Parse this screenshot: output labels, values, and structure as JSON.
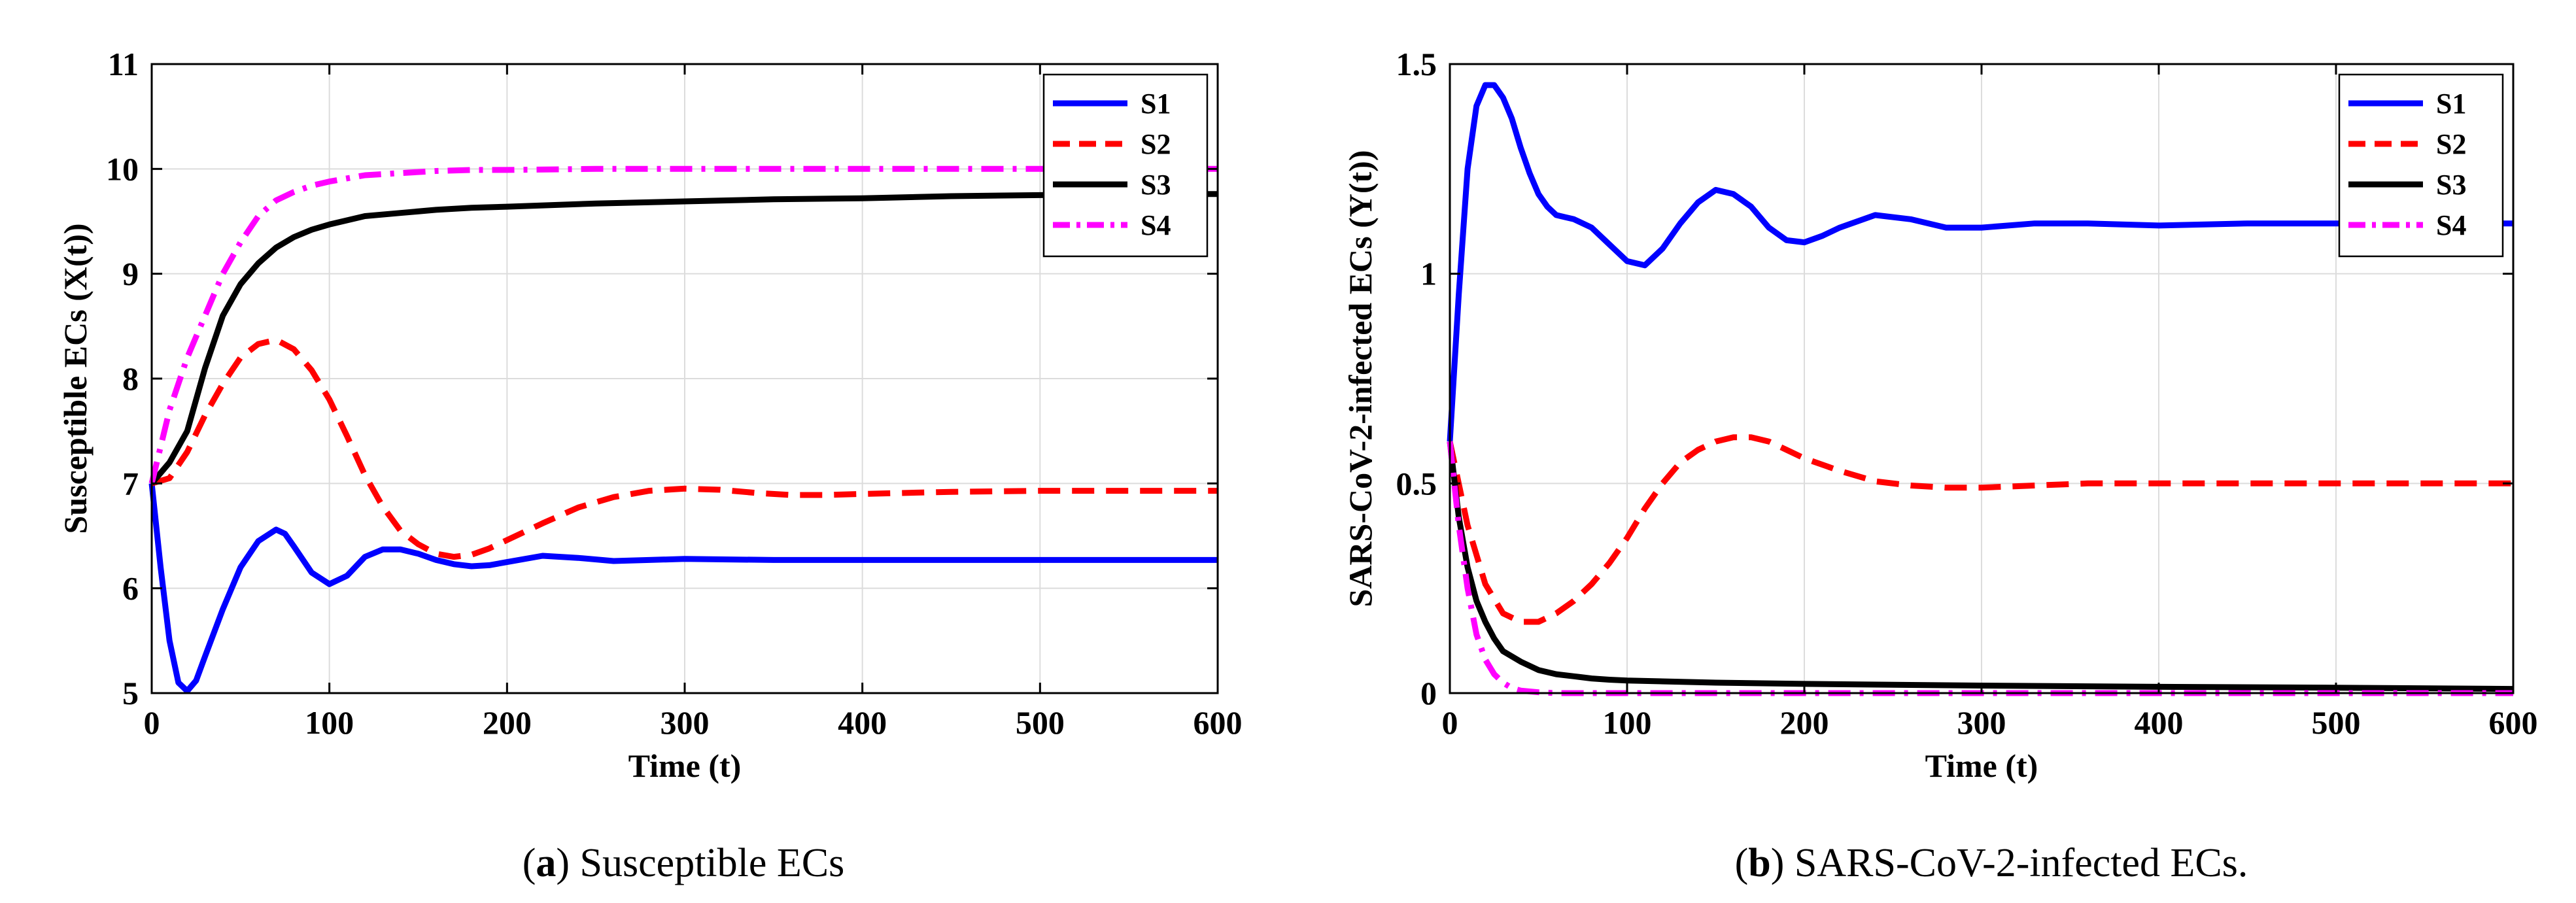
{
  "chart_data": [
    {
      "type": "line",
      "panel": "a",
      "title": "",
      "xlabel": "Time (t)",
      "ylabel": "Susceptible ECs (X(t))",
      "xlim": [
        0,
        600
      ],
      "ylim": [
        5,
        11
      ],
      "xticks": [
        0,
        100,
        200,
        300,
        400,
        500,
        600
      ],
      "yticks": [
        5,
        6,
        7,
        8,
        9,
        10,
        11
      ],
      "xtick_labels": [
        "0",
        "100",
        "200",
        "300",
        "400",
        "500",
        "600"
      ],
      "ytick_labels": [
        "5",
        "6",
        "7",
        "8",
        "9",
        "10",
        "11"
      ],
      "grid": true,
      "legend_position": "top-right",
      "caption_label": "a",
      "caption_text": "Susceptible ECs",
      "series": [
        {
          "name": "S1",
          "color": "#0000ff",
          "style": "solid",
          "x": [
            0,
            5,
            10,
            15,
            20,
            25,
            30,
            40,
            50,
            60,
            70,
            75,
            80,
            90,
            100,
            110,
            120,
            130,
            140,
            150,
            160,
            170,
            180,
            190,
            200,
            220,
            240,
            260,
            280,
            300,
            350,
            400,
            450,
            500,
            550,
            600
          ],
          "y": [
            7.0,
            6.2,
            5.5,
            5.1,
            5.02,
            5.12,
            5.35,
            5.8,
            6.2,
            6.45,
            6.56,
            6.52,
            6.4,
            6.15,
            6.04,
            6.12,
            6.3,
            6.37,
            6.37,
            6.33,
            6.27,
            6.23,
            6.21,
            6.22,
            6.25,
            6.31,
            6.29,
            6.26,
            6.27,
            6.28,
            6.27,
            6.27,
            6.27,
            6.27,
            6.27,
            6.27
          ]
        },
        {
          "name": "S2",
          "color": "#ff0000",
          "style": "dashed",
          "x": [
            0,
            10,
            20,
            30,
            40,
            50,
            60,
            70,
            80,
            90,
            100,
            110,
            120,
            130,
            140,
            150,
            160,
            170,
            180,
            190,
            200,
            220,
            240,
            260,
            280,
            300,
            320,
            340,
            360,
            380,
            400,
            450,
            500,
            550,
            600
          ],
          "y": [
            7.0,
            7.05,
            7.3,
            7.65,
            7.95,
            8.2,
            8.33,
            8.37,
            8.28,
            8.08,
            7.8,
            7.45,
            7.08,
            6.78,
            6.55,
            6.42,
            6.33,
            6.3,
            6.32,
            6.38,
            6.46,
            6.62,
            6.77,
            6.87,
            6.93,
            6.95,
            6.94,
            6.91,
            6.89,
            6.89,
            6.9,
            6.92,
            6.93,
            6.93,
            6.93
          ]
        },
        {
          "name": "S3",
          "color": "#000000",
          "style": "solid",
          "x": [
            0,
            10,
            20,
            30,
            40,
            50,
            60,
            70,
            80,
            90,
            100,
            120,
            140,
            160,
            180,
            200,
            250,
            300,
            350,
            400,
            450,
            500,
            550,
            600
          ],
          "y": [
            7.0,
            7.2,
            7.5,
            8.1,
            8.6,
            8.9,
            9.1,
            9.25,
            9.35,
            9.42,
            9.47,
            9.55,
            9.58,
            9.61,
            9.63,
            9.64,
            9.67,
            9.69,
            9.71,
            9.72,
            9.74,
            9.75,
            9.76,
            9.76
          ]
        },
        {
          "name": "S4",
          "color": "#ff00ff",
          "style": "dashdot",
          "x": [
            0,
            10,
            20,
            30,
            40,
            50,
            60,
            70,
            80,
            90,
            100,
            120,
            140,
            160,
            180,
            200,
            250,
            300,
            400,
            500,
            600
          ],
          "y": [
            7.0,
            7.7,
            8.2,
            8.6,
            9.0,
            9.3,
            9.55,
            9.7,
            9.78,
            9.84,
            9.88,
            9.94,
            9.96,
            9.98,
            9.99,
            9.99,
            10.0,
            10.0,
            10.0,
            10.0,
            10.0
          ]
        }
      ]
    },
    {
      "type": "line",
      "panel": "b",
      "title": "",
      "xlabel": "Time (t)",
      "ylabel": "SARS-CoV-2-infected ECs (Y(t))",
      "xlim": [
        0,
        600
      ],
      "ylim": [
        0,
        1.5
      ],
      "xticks": [
        0,
        100,
        200,
        300,
        400,
        500,
        600
      ],
      "yticks": [
        0,
        0.5,
        1,
        1.5
      ],
      "xtick_labels": [
        "0",
        "100",
        "200",
        "300",
        "400",
        "500",
        "600"
      ],
      "ytick_labels": [
        "0",
        "0.5",
        "1",
        "1.5"
      ],
      "grid": true,
      "legend_position": "top-right",
      "caption_label": "b",
      "caption_text": "SARS-CoV-2-infected ECs.",
      "series": [
        {
          "name": "S1",
          "color": "#0000ff",
          "style": "solid",
          "x": [
            0,
            5,
            10,
            15,
            20,
            25,
            30,
            35,
            40,
            45,
            50,
            55,
            60,
            65,
            70,
            80,
            90,
            100,
            110,
            120,
            130,
            140,
            150,
            160,
            170,
            180,
            190,
            200,
            210,
            220,
            240,
            260,
            280,
            300,
            330,
            360,
            400,
            450,
            500,
            550,
            600
          ],
          "y": [
            0.6,
            0.95,
            1.25,
            1.4,
            1.45,
            1.45,
            1.42,
            1.37,
            1.3,
            1.24,
            1.19,
            1.16,
            1.14,
            1.135,
            1.13,
            1.11,
            1.07,
            1.03,
            1.02,
            1.06,
            1.12,
            1.17,
            1.2,
            1.19,
            1.16,
            1.11,
            1.08,
            1.075,
            1.09,
            1.11,
            1.14,
            1.13,
            1.11,
            1.11,
            1.12,
            1.12,
            1.115,
            1.12,
            1.12,
            1.12,
            1.12
          ]
        },
        {
          "name": "S2",
          "color": "#ff0000",
          "style": "dashed",
          "x": [
            0,
            10,
            20,
            30,
            40,
            50,
            60,
            70,
            80,
            90,
            100,
            110,
            120,
            130,
            140,
            150,
            160,
            170,
            180,
            190,
            200,
            220,
            240,
            260,
            280,
            300,
            330,
            360,
            400,
            450,
            500,
            550,
            600
          ],
          "y": [
            0.6,
            0.4,
            0.26,
            0.19,
            0.17,
            0.17,
            0.19,
            0.22,
            0.26,
            0.31,
            0.37,
            0.44,
            0.5,
            0.55,
            0.58,
            0.6,
            0.61,
            0.61,
            0.6,
            0.58,
            0.56,
            0.53,
            0.505,
            0.495,
            0.49,
            0.49,
            0.495,
            0.5,
            0.5,
            0.5,
            0.5,
            0.5,
            0.5
          ]
        },
        {
          "name": "S3",
          "color": "#000000",
          "style": "solid",
          "x": [
            0,
            5,
            10,
            15,
            20,
            25,
            30,
            40,
            50,
            60,
            70,
            80,
            90,
            100,
            150,
            200,
            300,
            400,
            500,
            600
          ],
          "y": [
            0.6,
            0.42,
            0.3,
            0.22,
            0.17,
            0.13,
            0.1,
            0.075,
            0.055,
            0.045,
            0.04,
            0.035,
            0.032,
            0.03,
            0.025,
            0.022,
            0.018,
            0.015,
            0.013,
            0.01
          ]
        },
        {
          "name": "S4",
          "color": "#ff00ff",
          "style": "dashdot",
          "x": [
            0,
            5,
            10,
            15,
            20,
            25,
            30,
            35,
            40,
            50,
            60,
            80,
            100,
            200,
            300,
            400,
            500,
            600
          ],
          "y": [
            0.6,
            0.4,
            0.25,
            0.14,
            0.08,
            0.045,
            0.025,
            0.012,
            0.006,
            0.002,
            0.0,
            0.0,
            0.0,
            0.0,
            0.0,
            0.0,
            0.0,
            0.0
          ]
        }
      ]
    }
  ]
}
